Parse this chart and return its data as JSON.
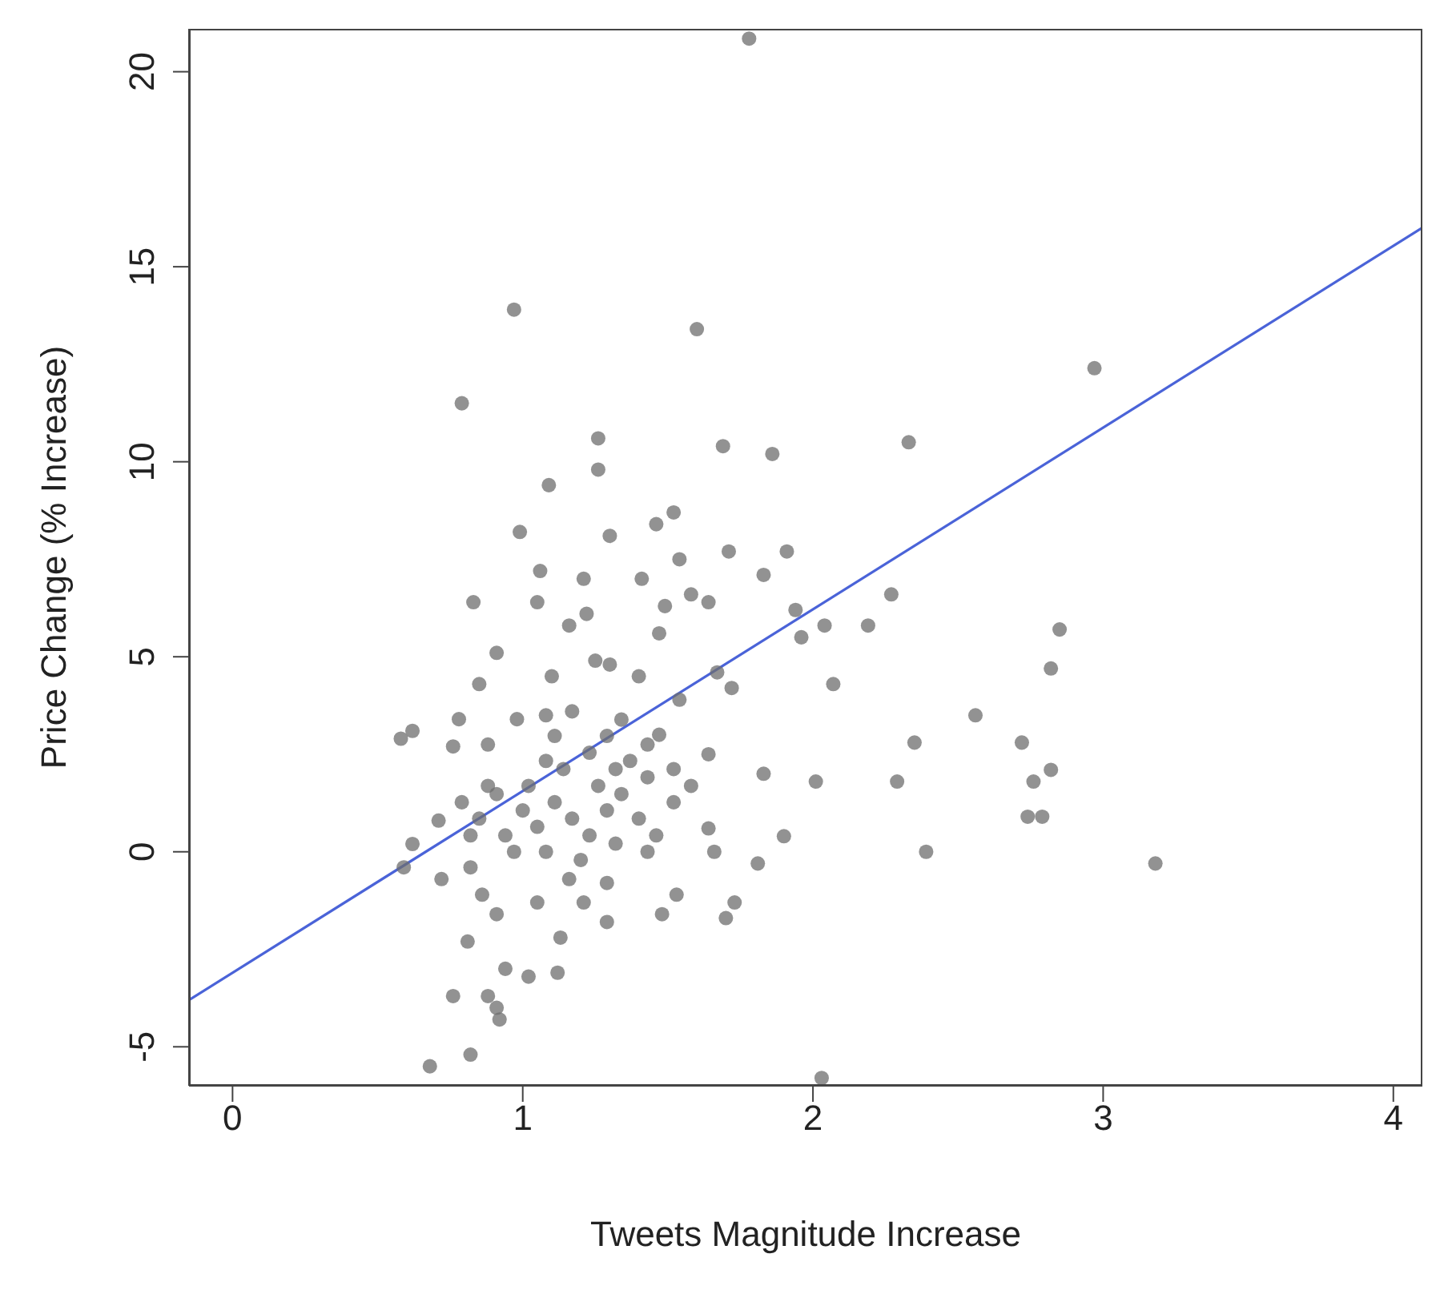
{
  "chart_data": {
    "type": "scatter",
    "xlabel": "Tweets Magnitude Increase",
    "ylabel": "Price Change (% Increase)",
    "xlim": [
      -0.15,
      4.1
    ],
    "ylim": [
      -6,
      21.1
    ],
    "xticks": [
      0,
      1,
      2,
      3,
      4
    ],
    "yticks": [
      -5,
      0,
      5,
      10,
      15,
      20
    ],
    "series": [
      {
        "marker": "circle",
        "color": "#6e6e6e",
        "x": [
          1.78,
          0.97,
          1.6,
          0.79,
          2.97,
          1.26,
          1.26,
          1.09,
          1.69,
          1.86,
          2.33,
          0.99,
          1.3,
          1.46,
          1.52,
          1.06,
          1.05,
          0.83,
          1.21,
          1.41,
          1.54,
          1.71,
          1.91,
          1.83,
          1.94,
          2.27,
          1.96,
          2.04,
          2.19,
          2.07,
          1.47,
          1.58,
          1.49,
          1.64,
          1.22,
          1.16,
          0.91,
          0.85,
          1.1,
          1.08,
          1.25,
          1.3,
          1.4,
          1.54,
          1.67,
          1.72,
          0.98,
          0.78,
          0.62,
          0.58,
          0.76,
          0.88,
          1.83,
          1.64,
          1.47,
          2.35,
          2.56,
          2.72,
          2.76,
          2.74,
          2.79,
          2.29,
          2.01,
          1.9,
          2.39,
          2.82,
          2.82,
          2.85,
          3.18,
          2.03,
          0.68,
          0.82,
          0.76,
          0.81,
          0.88,
          0.91,
          0.92,
          1.02,
          0.94,
          1.12,
          1.13,
          1.29,
          1.29,
          1.48,
          1.53,
          1.7,
          1.73,
          1.81,
          1.64,
          1.66,
          0.59,
          0.62,
          0.71,
          0.72,
          0.82,
          0.86,
          0.91,
          1.05,
          1.16,
          1.21,
          0.85,
          0.94,
          1.0,
          1.05,
          1.11,
          1.17,
          1.23,
          1.29,
          1.34,
          1.4,
          1.46,
          0.91,
          1.02,
          1.14,
          1.26,
          1.32,
          1.37,
          1.43,
          0.97,
          1.08,
          1.2,
          1.32,
          1.43,
          1.52,
          1.58,
          0.88,
          0.82,
          0.79,
          1.11,
          1.23,
          1.29,
          1.34,
          1.43,
          1.52,
          1.17,
          1.08
        ],
        "values": [
          20.85,
          13.9,
          13.4,
          11.5,
          12.4,
          10.6,
          9.8,
          9.4,
          10.4,
          10.2,
          10.5,
          8.2,
          8.1,
          8.4,
          8.7,
          7.2,
          6.4,
          6.4,
          7.0,
          7.0,
          7.5,
          7.7,
          7.7,
          7.1,
          6.2,
          6.6,
          5.5,
          5.8,
          5.8,
          4.3,
          5.6,
          6.6,
          6.3,
          6.4,
          6.1,
          5.8,
          5.1,
          4.3,
          4.5,
          3.5,
          4.9,
          4.8,
          4.5,
          3.9,
          4.6,
          4.2,
          3.4,
          3.4,
          3.1,
          2.9,
          2.7,
          2.75,
          2.0,
          2.5,
          3.0,
          2.8,
          3.5,
          2.8,
          1.8,
          0.9,
          0.9,
          1.8,
          1.8,
          0.4,
          0.0,
          2.1,
          4.7,
          5.7,
          -0.3,
          -5.8,
          -5.5,
          -5.2,
          -3.7,
          -2.3,
          -3.7,
          -4.0,
          -4.3,
          -3.2,
          -3.0,
          -3.1,
          -2.2,
          -1.8,
          -0.8,
          -1.6,
          -1.1,
          -1.7,
          -1.3,
          -0.3,
          0.6,
          0.0,
          -0.4,
          0.2,
          0.8,
          -0.7,
          -0.4,
          -1.1,
          -1.6,
          -1.3,
          -0.7,
          -1.3,
          0.85,
          0.42,
          1.06,
          0.64,
          1.27,
          0.85,
          0.42,
          1.06,
          1.48,
          0.85,
          0.42,
          1.48,
          1.69,
          2.12,
          1.69,
          2.12,
          2.33,
          1.91,
          0.0,
          0.0,
          -0.21,
          0.21,
          0.0,
          1.27,
          1.69,
          1.69,
          0.42,
          1.27,
          2.97,
          2.54,
          2.97,
          3.39,
          2.75,
          2.12,
          3.6,
          2.33
        ]
      },
      {
        "type": "line",
        "marker": "none",
        "color": "#4a63d8",
        "x": [
          -0.15,
          4.1
        ],
        "values": [
          -3.8,
          16.0
        ]
      }
    ]
  }
}
